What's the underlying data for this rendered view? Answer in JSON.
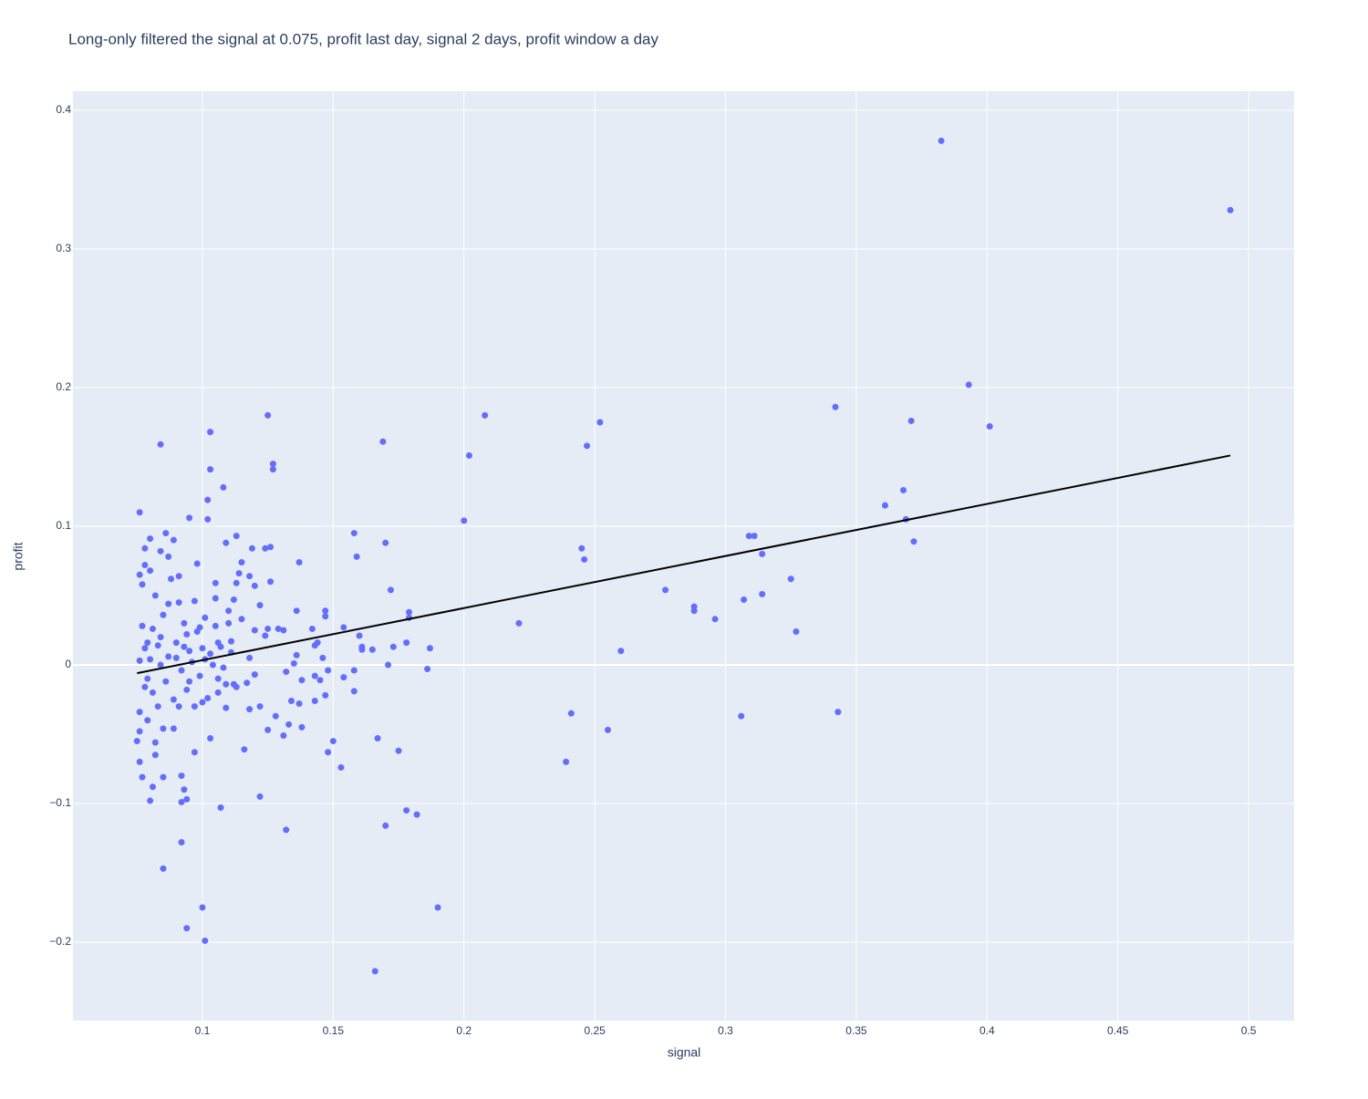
{
  "chart_data": {
    "type": "scatter",
    "title": "Long-only filtered the signal at 0.075, profit last day, signal 2 days, profit window a day",
    "x_label": "signal",
    "y_label": "profit",
    "xlim": [
      0.0505,
      0.5174
    ],
    "ylim": [
      -0.2566,
      0.4138
    ],
    "xticks": [
      0.1,
      0.15,
      0.2,
      0.25,
      0.3,
      0.35,
      0.4,
      0.45,
      0.5
    ],
    "yticks": [
      {
        "value": -0.2,
        "label": "−0.2"
      },
      {
        "value": -0.1,
        "label": "−0.1"
      },
      0,
      0.1,
      0.2,
      0.3,
      0.4
    ],
    "grid": true,
    "background": "#e5ecf6",
    "series": [
      {
        "mode": "markers",
        "color": "#636efa",
        "x": [
          0.3825,
          0.493,
          0.393,
          0.401,
          0.371,
          0.342,
          0.361,
          0.368,
          0.369,
          0.372,
          0.343,
          0.327,
          0.325,
          0.314,
          0.314,
          0.309,
          0.311,
          0.307,
          0.306,
          0.296,
          0.288,
          0.288,
          0.277,
          0.26,
          0.255,
          0.252,
          0.247,
          0.246,
          0.245,
          0.241,
          0.239,
          0.221,
          0.208,
          0.202,
          0.2,
          0.19,
          0.186,
          0.187,
          0.182,
          0.178,
          0.179,
          0.179,
          0.178,
          0.175,
          0.172,
          0.173,
          0.17,
          0.17,
          0.169,
          0.166,
          0.167,
          0.165,
          0.171,
          0.159,
          0.158,
          0.16,
          0.161,
          0.161,
          0.158,
          0.158,
          0.154,
          0.153,
          0.154,
          0.15,
          0.148,
          0.148,
          0.147,
          0.147,
          0.147,
          0.145,
          0.146,
          0.143,
          0.144,
          0.143,
          0.142,
          0.143,
          0.138,
          0.138,
          0.137,
          0.136,
          0.136,
          0.137,
          0.135,
          0.134,
          0.132,
          0.133,
          0.132,
          0.131,
          0.131,
          0.129,
          0.128,
          0.126,
          0.126,
          0.127,
          0.127,
          0.125,
          0.125,
          0.125,
          0.124,
          0.124,
          0.122,
          0.122,
          0.122,
          0.12,
          0.12,
          0.12,
          0.119,
          0.118,
          0.118,
          0.117,
          0.116,
          0.115,
          0.114,
          0.113,
          0.113,
          0.112,
          0.112,
          0.111,
          0.11,
          0.109,
          0.108,
          0.109,
          0.109,
          0.107,
          0.106,
          0.106,
          0.105,
          0.105,
          0.103,
          0.103,
          0.103,
          0.102,
          0.102,
          0.101,
          0.101,
          0.1,
          0.098,
          0.097,
          0.095,
          0.094,
          0.094,
          0.093,
          0.092,
          0.092,
          0.092,
          0.091,
          0.089,
          0.087,
          0.086,
          0.085,
          0.084,
          0.084,
          0.085,
          0.082,
          0.081,
          0.08,
          0.08,
          0.077,
          0.078,
          0.078,
          0.076,
          0.076,
          0.076,
          0.075,
          0.076,
          0.077,
          0.078,
          0.079,
          0.08,
          0.081,
          0.082,
          0.083,
          0.084,
          0.085,
          0.086,
          0.087,
          0.088,
          0.089,
          0.09,
          0.091,
          0.092,
          0.093,
          0.094,
          0.095,
          0.096,
          0.097,
          0.098,
          0.099,
          0.1,
          0.101,
          0.102,
          0.103,
          0.104,
          0.105,
          0.106,
          0.107,
          0.108,
          0.11,
          0.111,
          0.113,
          0.115,
          0.118,
          0.076,
          0.077,
          0.079,
          0.081,
          0.083,
          0.085,
          0.087,
          0.089,
          0.091,
          0.093,
          0.095,
          0.097,
          0.099,
          0.08,
          0.082,
          0.078,
          0.084,
          0.09,
          0.094,
          0.1,
          0.076,
          0.079
        ],
        "y": [
          0.378,
          0.328,
          0.202,
          0.172,
          0.176,
          0.186,
          0.115,
          0.126,
          0.105,
          0.089,
          -0.034,
          0.024,
          0.062,
          0.051,
          0.08,
          0.093,
          0.093,
          0.047,
          -0.037,
          0.033,
          0.042,
          0.039,
          0.054,
          0.01,
          -0.047,
          0.175,
          0.158,
          0.076,
          0.084,
          -0.035,
          -0.07,
          0.03,
          0.18,
          0.151,
          0.104,
          -0.175,
          -0.003,
          0.012,
          -0.108,
          -0.105,
          0.034,
          0.038,
          0.016,
          -0.062,
          0.054,
          0.013,
          0.088,
          -0.116,
          0.161,
          -0.221,
          -0.053,
          0.011,
          0,
          0.078,
          0.095,
          0.021,
          0.013,
          0.011,
          -0.004,
          -0.019,
          0.027,
          -0.074,
          -0.009,
          -0.055,
          -0.063,
          -0.004,
          0.035,
          0.039,
          -0.022,
          -0.011,
          0.005,
          0.014,
          0.016,
          -0.026,
          0.026,
          -0.008,
          -0.011,
          -0.045,
          0.074,
          0.039,
          0.007,
          -0.028,
          0.001,
          -0.026,
          -0.119,
          -0.043,
          -0.005,
          0.025,
          -0.051,
          0.026,
          -0.037,
          0.085,
          0.06,
          0.145,
          0.141,
          0.18,
          0.026,
          -0.047,
          0.084,
          0.021,
          -0.095,
          0.043,
          -0.03,
          0.057,
          0.025,
          -0.007,
          0.084,
          0.064,
          -0.032,
          -0.013,
          -0.061,
          0.074,
          0.066,
          0.059,
          0.093,
          0.047,
          -0.014,
          0.017,
          0.039,
          0.088,
          0.128,
          -0.014,
          -0.031,
          -0.103,
          0.016,
          -0.02,
          0.059,
          0.028,
          -0.053,
          0.168,
          0.141,
          0.119,
          0.105,
          -0.199,
          0.034,
          -0.175,
          0.073,
          -0.063,
          0.106,
          -0.19,
          -0.097,
          -0.09,
          -0.128,
          -0.08,
          -0.099,
          0.064,
          0.09,
          0.078,
          0.095,
          -0.147,
          0.159,
          0.082,
          -0.081,
          -0.065,
          -0.088,
          0.091,
          -0.098,
          -0.081,
          0.072,
          0.084,
          0.11,
          -0.07,
          -0.048,
          -0.055,
          0.065,
          0.028,
          0.012,
          -0.01,
          0.004,
          -0.02,
          0.05,
          -0.03,
          0.02,
          0.036,
          -0.012,
          0.006,
          0.062,
          -0.025,
          0.016,
          0.045,
          -0.004,
          0.03,
          -0.018,
          0.01,
          0.002,
          -0.03,
          0.024,
          -0.008,
          0.012,
          0.004,
          -0.024,
          0.008,
          0,
          0.048,
          -0.01,
          0.013,
          -0.002,
          0.03,
          0.009,
          -0.016,
          0.033,
          0.005,
          -0.034,
          0.058,
          -0.04,
          0.026,
          0.014,
          -0.046,
          0.044,
          -0.046,
          -0.03,
          0.013,
          -0.012,
          0.046,
          0.027,
          0.068,
          -0.056,
          -0.016,
          0,
          0.005,
          0.022,
          -0.027,
          0.003,
          0.016
        ]
      },
      {
        "mode": "lines",
        "color": "#000000",
        "x": [
          0.075,
          0.493
        ],
        "y": [
          -0.006,
          0.151
        ]
      }
    ]
  }
}
